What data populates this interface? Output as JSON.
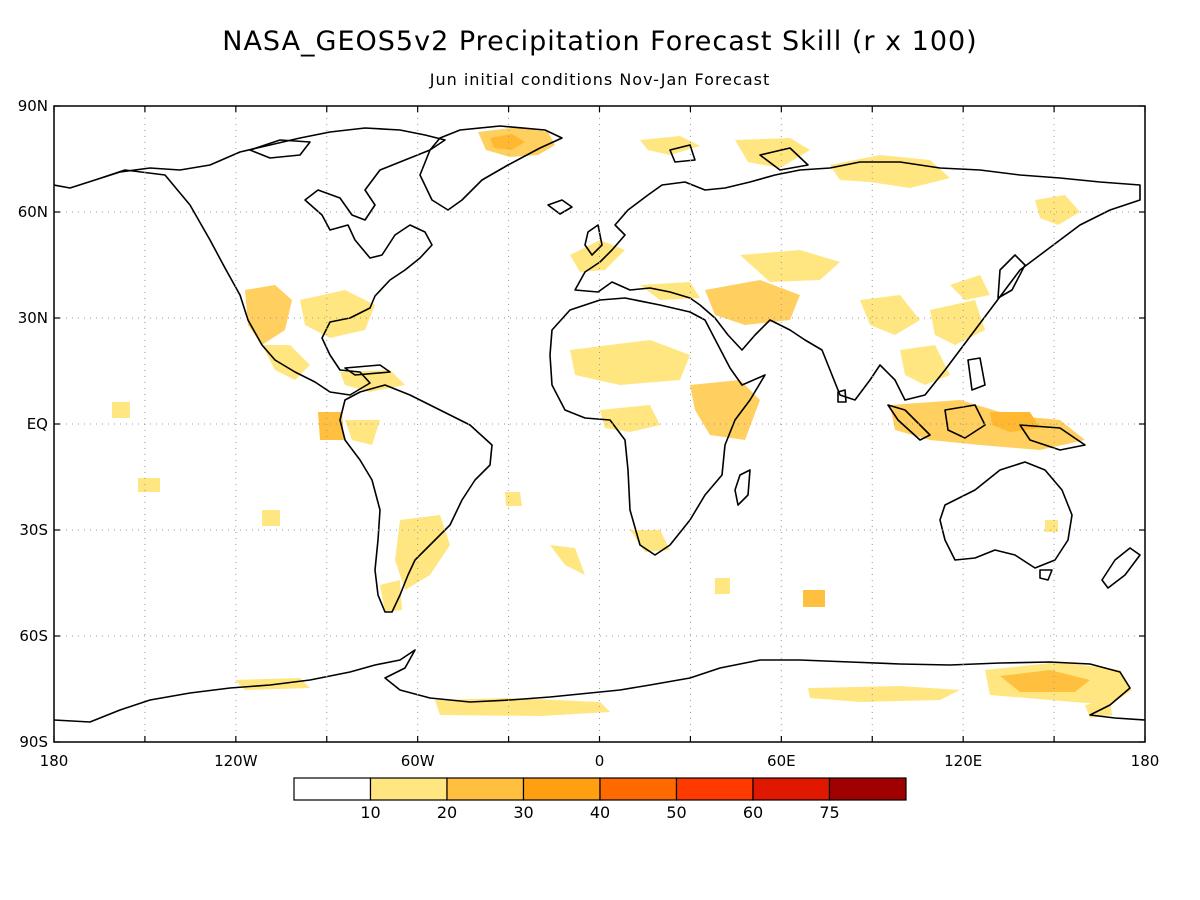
{
  "title": "NASA_GEOS5v2 Precipitation Forecast Skill (r x 100)",
  "subtitle": "Jun initial conditions   Nov-Jan Forecast",
  "lat_labels": [
    "90N",
    "60N",
    "30N",
    "EQ",
    "30S",
    "60S",
    "90S"
  ],
  "lon_labels": [
    "180",
    "120W",
    "60W",
    "0",
    "60E",
    "120E",
    "180"
  ],
  "colorbar": {
    "labels": [
      "10",
      "20",
      "30",
      "40",
      "50",
      "60",
      "75"
    ],
    "colors": [
      "#ffffff",
      "#ffe680",
      "#ffc040",
      "#ffa010",
      "#ff6a00",
      "#ff3a00",
      "#e01800",
      "#a00000"
    ]
  },
  "chart_data": {
    "type": "heatmap",
    "title": "NASA_GEOS5v2 Precipitation Forecast Skill (r x 100)",
    "subtitle": "Jun initial conditions   Nov-Jan Forecast",
    "xlim": [
      -180,
      180
    ],
    "ylim": [
      -90,
      90
    ],
    "x_ticks": [
      -180,
      -120,
      -60,
      0,
      60,
      120,
      180
    ],
    "y_ticks": [
      90,
      60,
      30,
      0,
      -30,
      -60,
      -90
    ],
    "grid": true,
    "levels": [
      10,
      20,
      30,
      40,
      50,
      60,
      75
    ],
    "regions": [
      {
        "lon": -30,
        "lat": 78,
        "value": 20
      },
      {
        "lon": 160,
        "lat": 70,
        "value": 15
      },
      {
        "lon": 90,
        "lat": 70,
        "value": 15
      },
      {
        "lon": -115,
        "lat": 35,
        "value": 20
      },
      {
        "lon": -95,
        "lat": 20,
        "value": 15
      },
      {
        "lon": -90,
        "lat": 0,
        "value": 25
      },
      {
        "lon": -55,
        "lat": -35,
        "value": 15
      },
      {
        "lon": 45,
        "lat": 35,
        "value": 20
      },
      {
        "lon": 30,
        "lat": 10,
        "value": 15
      },
      {
        "lon": 120,
        "lat": 0,
        "value": 20
      },
      {
        "lon": 145,
        "lat": -75,
        "value": 25
      },
      {
        "lon": 80,
        "lat": -80,
        "value": 15
      },
      {
        "lon": -20,
        "lat": -80,
        "value": 15
      }
    ]
  }
}
